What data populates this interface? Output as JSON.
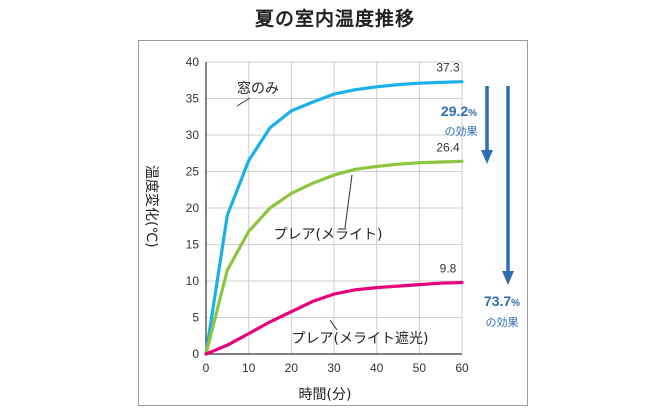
{
  "chart_data": {
    "type": "line",
    "title": "夏の室内温度推移",
    "xlabel": "時間(分)",
    "ylabel": "温度変化(℃)",
    "xlim": [
      0,
      60
    ],
    "ylim": [
      0,
      40
    ],
    "x_ticks": [
      "0",
      "10",
      "20",
      "30",
      "40",
      "50",
      "60"
    ],
    "y_ticks": [
      "0",
      "5",
      "10",
      "15",
      "20",
      "25",
      "30",
      "35",
      "40"
    ],
    "grid": true,
    "series": [
      {
        "name": "窓のみ",
        "color": "#1ab0e8",
        "end_label": "37.3",
        "x": [
          0,
          5,
          10,
          15,
          20,
          25,
          30,
          35,
          40,
          45,
          50,
          55,
          60
        ],
        "y": [
          0,
          19,
          26.5,
          31,
          33.3,
          34.5,
          35.6,
          36.2,
          36.6,
          36.9,
          37.1,
          37.2,
          37.3
        ]
      },
      {
        "name": "プレア(メライト)",
        "color": "#8cc63f",
        "end_label": "26.4",
        "x": [
          0,
          5,
          10,
          15,
          20,
          25,
          30,
          35,
          40,
          45,
          50,
          55,
          60
        ],
        "y": [
          0,
          11.5,
          16.8,
          20,
          22,
          23.4,
          24.5,
          25.3,
          25.7,
          26,
          26.2,
          26.3,
          26.4
        ]
      },
      {
        "name": "プレア(メライト遮光)",
        "color": "#e6007e",
        "end_label": "9.8",
        "x": [
          0,
          5,
          10,
          15,
          20,
          25,
          30,
          35,
          40,
          45,
          50,
          55,
          60
        ],
        "y": [
          0,
          1.2,
          2.8,
          4.4,
          5.8,
          7.2,
          8.2,
          8.8,
          9.1,
          9.3,
          9.5,
          9.7,
          9.8
        ]
      }
    ],
    "effects": [
      {
        "value": "29.2",
        "unit": "%",
        "label": "の効果"
      },
      {
        "value": "73.7",
        "unit": "%",
        "label": "の効果"
      }
    ],
    "arrow_color": "#2e6db4"
  }
}
